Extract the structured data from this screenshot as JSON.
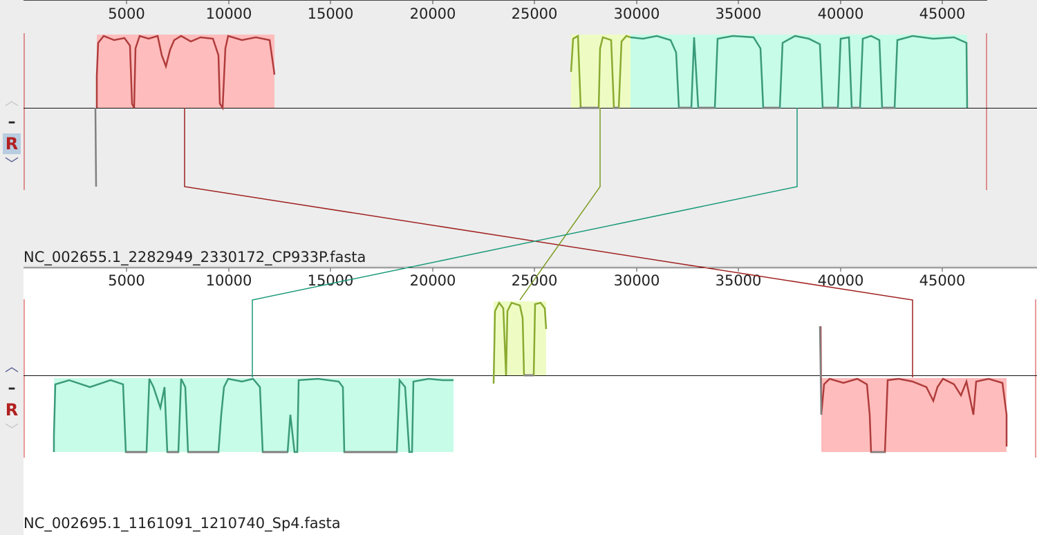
{
  "genomes": [
    {
      "name": "NC_002655.1_2282949_2330172_CP933P.fasta",
      "controls": {
        "up": "︿",
        "minus": "–",
        "reverse": "R",
        "down": "﹀"
      },
      "ticks": [
        "5000",
        "10000",
        "15000",
        "20000",
        "25000",
        "30000",
        "35000",
        "40000",
        "45000"
      ]
    },
    {
      "name": "NC_002695.1_1161091_1210740_Sp4.fasta",
      "controls": {
        "up": "︿",
        "minus": "–",
        "reverse": "R",
        "down": "﹀"
      },
      "ticks": [
        "5000",
        "10000",
        "15000",
        "20000",
        "25000",
        "30000",
        "35000",
        "40000",
        "45000"
      ]
    }
  ],
  "colors": {
    "lcb_red": "#ffbcbc",
    "lcb_red_line": "#a02020",
    "lcb_yellow": "#eefcc4",
    "lcb_yellow_line": "#7a9a20",
    "lcb_green": "#c6fce8",
    "lcb_green_line": "#1a9a7a",
    "panel_bg": "#ededed"
  }
}
